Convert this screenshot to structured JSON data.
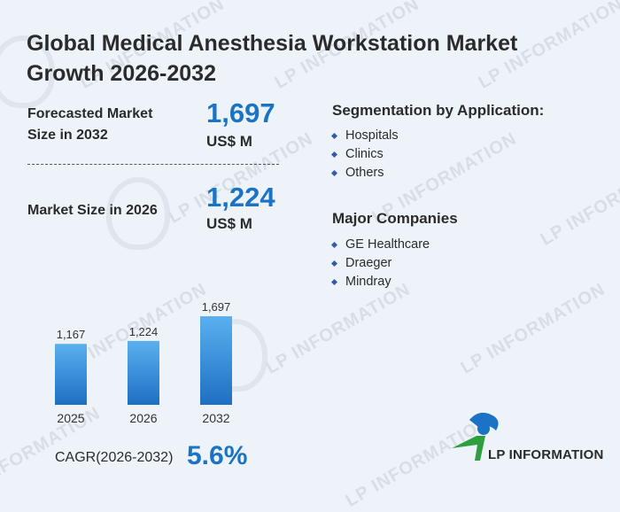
{
  "title": "Global Medical Anesthesia Workstation Market Growth 2026-2032",
  "forecast": {
    "label": "Forecasted Market Size in 2032",
    "value": "1,697",
    "unit": "US$ M"
  },
  "current": {
    "label": "Market Size in 2026",
    "value": "1,224",
    "unit": "US$ M"
  },
  "segmentation": {
    "title": "Segmentation by Application:",
    "items": [
      "Hospitals",
      "Clinics",
      "Others"
    ]
  },
  "companies": {
    "title": "Major Companies",
    "items": [
      "GE Healthcare",
      "Draeger",
      "Mindray"
    ]
  },
  "chart_data": {
    "type": "bar",
    "categories": [
      "2025",
      "2026",
      "2032"
    ],
    "values": [
      1167,
      1224,
      1697
    ],
    "value_labels": [
      "1,167",
      "1,224",
      "1,697"
    ],
    "ylim": [
      0,
      1697
    ]
  },
  "cagr": {
    "label": "CAGR(2026-2032)",
    "value": "5.6%"
  },
  "logo": {
    "text": "LP INFORMATION"
  },
  "watermark": "LP INFORMATION",
  "colors": {
    "accent": "#1a73c5",
    "bar_top": "#5ab0ef",
    "bar_bottom": "#1e6fc2",
    "logo_green": "#2e9e3e",
    "logo_blue": "#1a73c5"
  }
}
